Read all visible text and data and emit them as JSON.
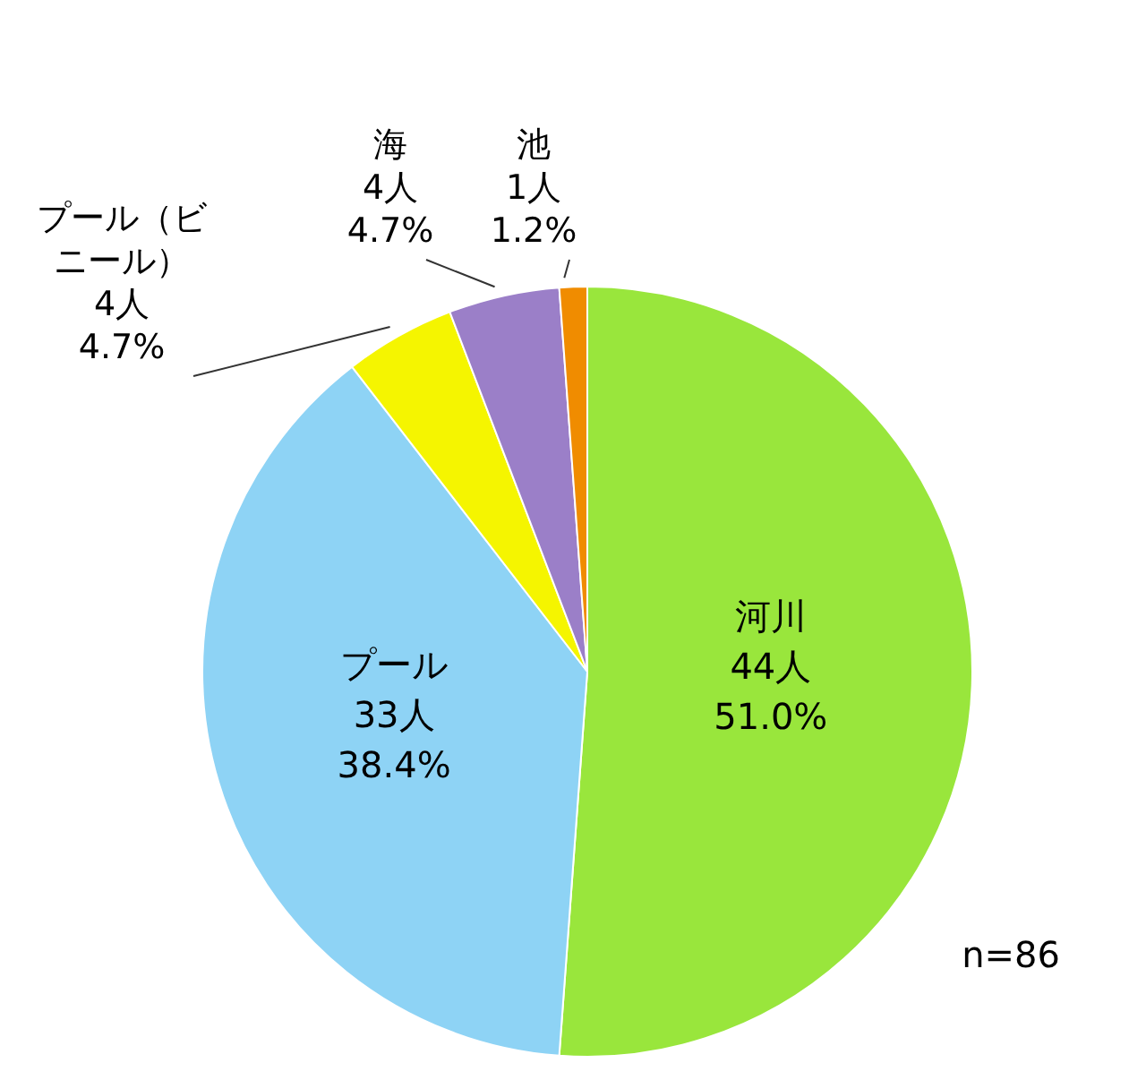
{
  "chart_data": {
    "type": "pie",
    "categories": [
      "河川",
      "プール",
      "プール（ビニール）",
      "海",
      "池"
    ],
    "values": [
      44,
      33,
      4,
      4,
      1
    ],
    "colors": [
      "#99e63c",
      "#8ed3f5",
      "#f5f500",
      "#9b7fc8",
      "#f08c00"
    ],
    "value_labels": [
      "44人\n51.0%",
      "33人\n38.4%",
      "4人\n4.7%",
      "4人\n4.7%",
      "1人\n1.2%"
    ],
    "annotations": [
      "n=86"
    ]
  }
}
